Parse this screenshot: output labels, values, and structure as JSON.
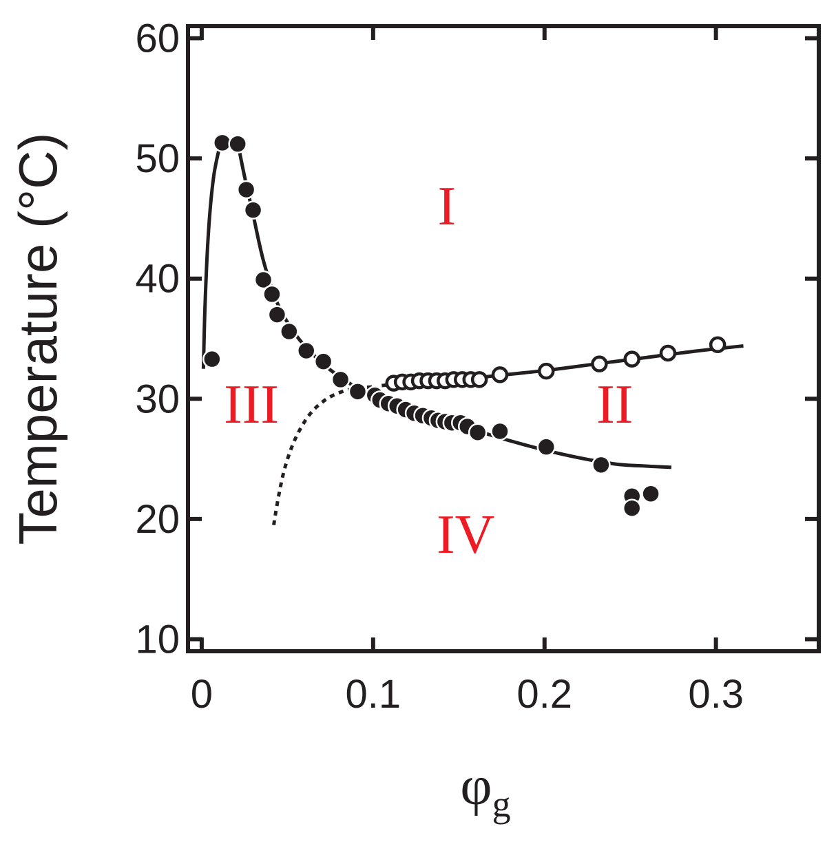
{
  "chart_data": {
    "type": "scatter",
    "title": "",
    "xlabel": "φ",
    "xlabel_subscript": "g",
    "ylabel": "Temperature  (°C)",
    "xlim": [
      -0.008,
      0.36
    ],
    "ylim": [
      9,
      61
    ],
    "x_ticks": [
      0,
      0.1,
      0.2,
      0.3
    ],
    "x_tick_labels": [
      "0",
      "0.1",
      "0.2",
      "0.3"
    ],
    "y_ticks": [
      10,
      20,
      30,
      40,
      50,
      60
    ],
    "y_tick_labels": [
      "10",
      "20",
      "30",
      "40",
      "50",
      "60"
    ],
    "grid": false,
    "colors": {
      "axis": "#231f20",
      "marker": "#231f20",
      "region": "#ed1c24"
    },
    "series": [
      {
        "name": "filled circles",
        "marker": "filled-circle",
        "points": [
          [
            0.006,
            33.3
          ],
          [
            0.012,
            51.3
          ],
          [
            0.021,
            51.2
          ],
          [
            0.026,
            47.4
          ],
          [
            0.03,
            45.7
          ],
          [
            0.036,
            39.9
          ],
          [
            0.041,
            38.7
          ],
          [
            0.044,
            37.0
          ],
          [
            0.051,
            35.6
          ],
          [
            0.061,
            34.0
          ],
          [
            0.071,
            33.1
          ],
          [
            0.081,
            31.6
          ],
          [
            0.091,
            30.6
          ],
          [
            0.101,
            30.3
          ],
          [
            0.104,
            29.9
          ],
          [
            0.109,
            29.6
          ],
          [
            0.114,
            29.4
          ],
          [
            0.119,
            29.1
          ],
          [
            0.124,
            28.8
          ],
          [
            0.129,
            28.6
          ],
          [
            0.134,
            28.4
          ],
          [
            0.138,
            28.2
          ],
          [
            0.142,
            28.1
          ],
          [
            0.146,
            28.0
          ],
          [
            0.151,
            28.0
          ],
          [
            0.155,
            27.7
          ],
          [
            0.161,
            27.2
          ],
          [
            0.174,
            27.3
          ],
          [
            0.201,
            26.0
          ],
          [
            0.233,
            24.5
          ],
          [
            0.251,
            21.9
          ],
          [
            0.262,
            22.1
          ],
          [
            0.251,
            20.9
          ]
        ]
      },
      {
        "name": "open circles",
        "marker": "open-circle",
        "points": [
          [
            0.112,
            31.3
          ],
          [
            0.117,
            31.4
          ],
          [
            0.122,
            31.4
          ],
          [
            0.127,
            31.5
          ],
          [
            0.132,
            31.5
          ],
          [
            0.137,
            31.5
          ],
          [
            0.142,
            31.5
          ],
          [
            0.147,
            31.6
          ],
          [
            0.152,
            31.6
          ],
          [
            0.157,
            31.6
          ],
          [
            0.162,
            31.6
          ],
          [
            0.174,
            32.0
          ],
          [
            0.201,
            32.3
          ],
          [
            0.232,
            32.9
          ],
          [
            0.251,
            33.3
          ],
          [
            0.272,
            33.8
          ],
          [
            0.301,
            34.5
          ]
        ]
      }
    ],
    "curves": [
      {
        "name": "left branch",
        "style": "solid",
        "points": [
          [
            0.001,
            32.5
          ],
          [
            0.002,
            38.0
          ],
          [
            0.004,
            44.0
          ],
          [
            0.007,
            48.5
          ],
          [
            0.011,
            51.3
          ]
        ]
      },
      {
        "name": "upper boundary",
        "style": "solid",
        "points": [
          [
            0.021,
            51.3
          ],
          [
            0.025,
            48.5
          ],
          [
            0.03,
            45.3
          ],
          [
            0.036,
            41.5
          ],
          [
            0.044,
            38.0
          ],
          [
            0.055,
            35.3
          ],
          [
            0.07,
            33.0
          ],
          [
            0.085,
            31.4
          ],
          [
            0.1,
            30.2
          ],
          [
            0.12,
            29.1
          ],
          [
            0.15,
            27.8
          ],
          [
            0.18,
            26.5
          ],
          [
            0.21,
            25.4
          ],
          [
            0.24,
            24.6
          ],
          [
            0.26,
            24.4
          ],
          [
            0.274,
            24.3
          ]
        ]
      },
      {
        "name": "open-circle line",
        "style": "solid",
        "points": [
          [
            0.105,
            31.1
          ],
          [
            0.12,
            31.35
          ],
          [
            0.15,
            31.6
          ],
          [
            0.17,
            31.9
          ],
          [
            0.2,
            32.35
          ],
          [
            0.23,
            32.9
          ],
          [
            0.26,
            33.45
          ],
          [
            0.29,
            34.0
          ],
          [
            0.316,
            34.4
          ]
        ]
      },
      {
        "name": "spinodal (dotted)",
        "style": "dotted",
        "points": [
          [
            0.042,
            19.5
          ],
          [
            0.045,
            22.0
          ],
          [
            0.049,
            24.5
          ],
          [
            0.055,
            26.8
          ],
          [
            0.063,
            28.7
          ],
          [
            0.072,
            29.9
          ],
          [
            0.082,
            30.6
          ],
          [
            0.092,
            30.9
          ],
          [
            0.102,
            31.0
          ]
        ]
      }
    ],
    "annotations": [
      {
        "text": "I",
        "x": 0.143,
        "y": 44.5
      },
      {
        "text": "II",
        "x": 0.241,
        "y": 28.0
      },
      {
        "text": "III",
        "x": 0.029,
        "y": 28.0
      },
      {
        "text": "IV",
        "x": 0.154,
        "y": 17.2
      }
    ]
  }
}
